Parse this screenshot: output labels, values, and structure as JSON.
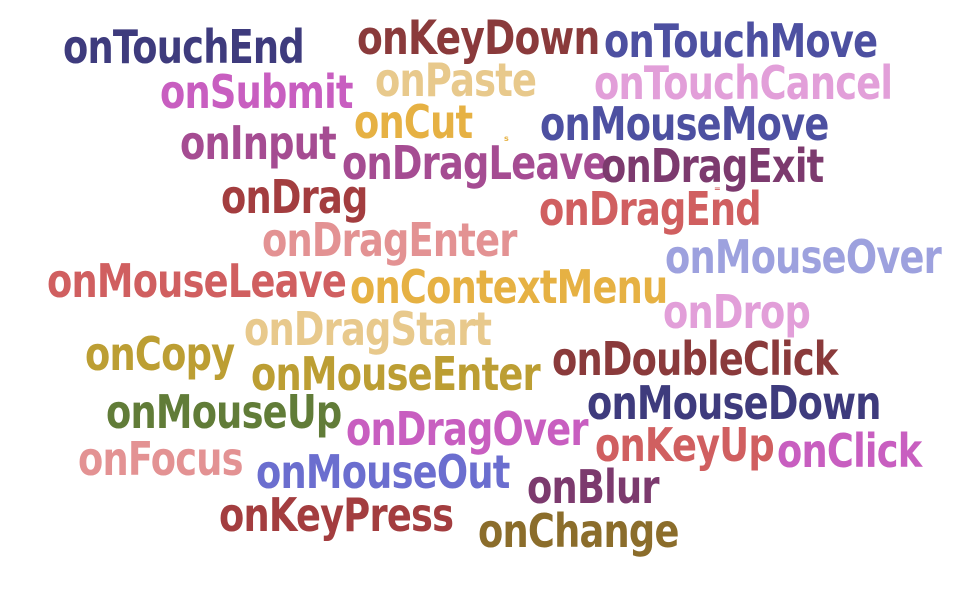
{
  "words": [
    {
      "text": "onTouchEnd",
      "color": "#3e3b7d"
    },
    {
      "text": "onKeyDown",
      "color": "#8a3a3b"
    },
    {
      "text": "onTouchMove",
      "color": "#4d50a1"
    },
    {
      "text": "onSubmit",
      "color": "#c85ec0"
    },
    {
      "text": "onPaste",
      "color": "#e8c98c"
    },
    {
      "text": "onTouchCancel",
      "color": "#e29fd9"
    },
    {
      "text": "onCut",
      "color": "#e6b143"
    },
    {
      "text": "onMouseMove",
      "color": "#4d50a1"
    },
    {
      "text": "onInput",
      "color": "#a54c92"
    },
    {
      "text": "onDragLeave",
      "color": "#a54c92"
    },
    {
      "text": "onDragExit",
      "color": "#7c3a6e"
    },
    {
      "text": "onDrag",
      "color": "#a33d3f"
    },
    {
      "text": "onDragEnd",
      "color": "#d05f60"
    },
    {
      "text": "onDragEnter",
      "color": "#e39293"
    },
    {
      "text": "onMouseOver",
      "color": "#9da1de"
    },
    {
      "text": "onMouseLeave",
      "color": "#d05f60"
    },
    {
      "text": "onContextMenu",
      "color": "#e6b143"
    },
    {
      "text": "onDrop",
      "color": "#e29fd9"
    },
    {
      "text": "onDragStart",
      "color": "#e8c98c"
    },
    {
      "text": "onCopy",
      "color": "#bc9e33"
    },
    {
      "text": "onDoubleClick",
      "color": "#8a3a3b"
    },
    {
      "text": "onMouseEnter",
      "color": "#bc9e33"
    },
    {
      "text": "onMouseDown",
      "color": "#3e3b7d"
    },
    {
      "text": "onMouseUp",
      "color": "#617c38"
    },
    {
      "text": "onDragOver",
      "color": "#c85ec0"
    },
    {
      "text": "onKeyUp",
      "color": "#d05f60"
    },
    {
      "text": "onClick",
      "color": "#c85ec0"
    },
    {
      "text": "onFocus",
      "color": "#e39293"
    },
    {
      "text": "onMouseOut",
      "color": "#6b6ecf"
    },
    {
      "text": "onBlur",
      "color": "#7c3a6e"
    },
    {
      "text": "onKeyPress",
      "color": "#a33d3f"
    },
    {
      "text": "onChange",
      "color": "#8b6d2b"
    }
  ],
  "specks": [
    "s",
    "="
  ]
}
